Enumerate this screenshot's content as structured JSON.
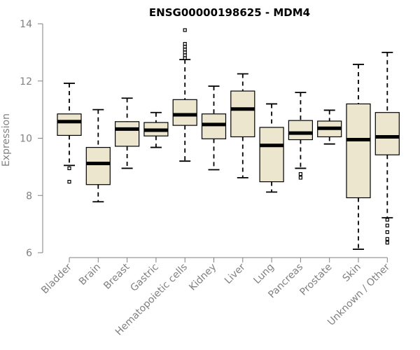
{
  "chart_data": {
    "type": "boxplot",
    "title": "ENSG00000198625 - MDM4",
    "xlabel": "",
    "ylabel": "Expression",
    "ylim": [
      6,
      14
    ],
    "yticks": [
      6,
      8,
      10,
      12,
      14
    ],
    "box_color": "#ede6cf",
    "series": [
      {
        "name": "Bladder",
        "whisker_low": 9.05,
        "q1": 10.1,
        "median": 10.58,
        "q3": 10.85,
        "whisker_high": 11.92,
        "outliers": [
          8.95,
          8.48
        ]
      },
      {
        "name": "Brain",
        "whisker_low": 7.78,
        "q1": 8.38,
        "median": 9.12,
        "q3": 9.68,
        "whisker_high": 11.0,
        "outliers": []
      },
      {
        "name": "Breast",
        "whisker_low": 8.95,
        "q1": 9.72,
        "median": 10.32,
        "q3": 10.58,
        "whisker_high": 11.4,
        "outliers": []
      },
      {
        "name": "Gastric",
        "whisker_low": 9.68,
        "q1": 10.08,
        "median": 10.28,
        "q3": 10.55,
        "whisker_high": 10.9,
        "outliers": []
      },
      {
        "name": "Hematopoietic cells",
        "whisker_low": 9.2,
        "q1": 10.45,
        "median": 10.82,
        "q3": 11.35,
        "whisker_high": 12.75,
        "outliers": [
          12.8,
          12.9,
          13.0,
          13.1,
          13.2,
          13.3,
          13.78
        ]
      },
      {
        "name": "Kidney",
        "whisker_low": 8.9,
        "q1": 9.98,
        "median": 10.48,
        "q3": 10.85,
        "whisker_high": 11.82,
        "outliers": []
      },
      {
        "name": "Liver",
        "whisker_low": 8.62,
        "q1": 10.05,
        "median": 11.02,
        "q3": 11.65,
        "whisker_high": 12.25,
        "outliers": []
      },
      {
        "name": "Lung",
        "whisker_low": 8.12,
        "q1": 8.48,
        "median": 9.75,
        "q3": 10.38,
        "whisker_high": 11.2,
        "outliers": []
      },
      {
        "name": "Pancreas",
        "whisker_low": 8.95,
        "q1": 9.95,
        "median": 10.18,
        "q3": 10.62,
        "whisker_high": 11.6,
        "outliers": [
          8.75,
          8.62
        ]
      },
      {
        "name": "Prostate",
        "whisker_low": 9.8,
        "q1": 10.05,
        "median": 10.35,
        "q3": 10.6,
        "whisker_high": 10.98,
        "outliers": []
      },
      {
        "name": "Skin",
        "whisker_low": 6.12,
        "q1": 7.92,
        "median": 9.95,
        "q3": 11.2,
        "whisker_high": 12.58,
        "outliers": []
      },
      {
        "name": "Unknown / Other",
        "whisker_low": 7.22,
        "q1": 9.42,
        "median": 10.05,
        "q3": 10.9,
        "whisker_high": 13.0,
        "outliers": [
          7.15,
          6.95,
          6.72,
          6.48,
          6.35
        ]
      }
    ]
  }
}
